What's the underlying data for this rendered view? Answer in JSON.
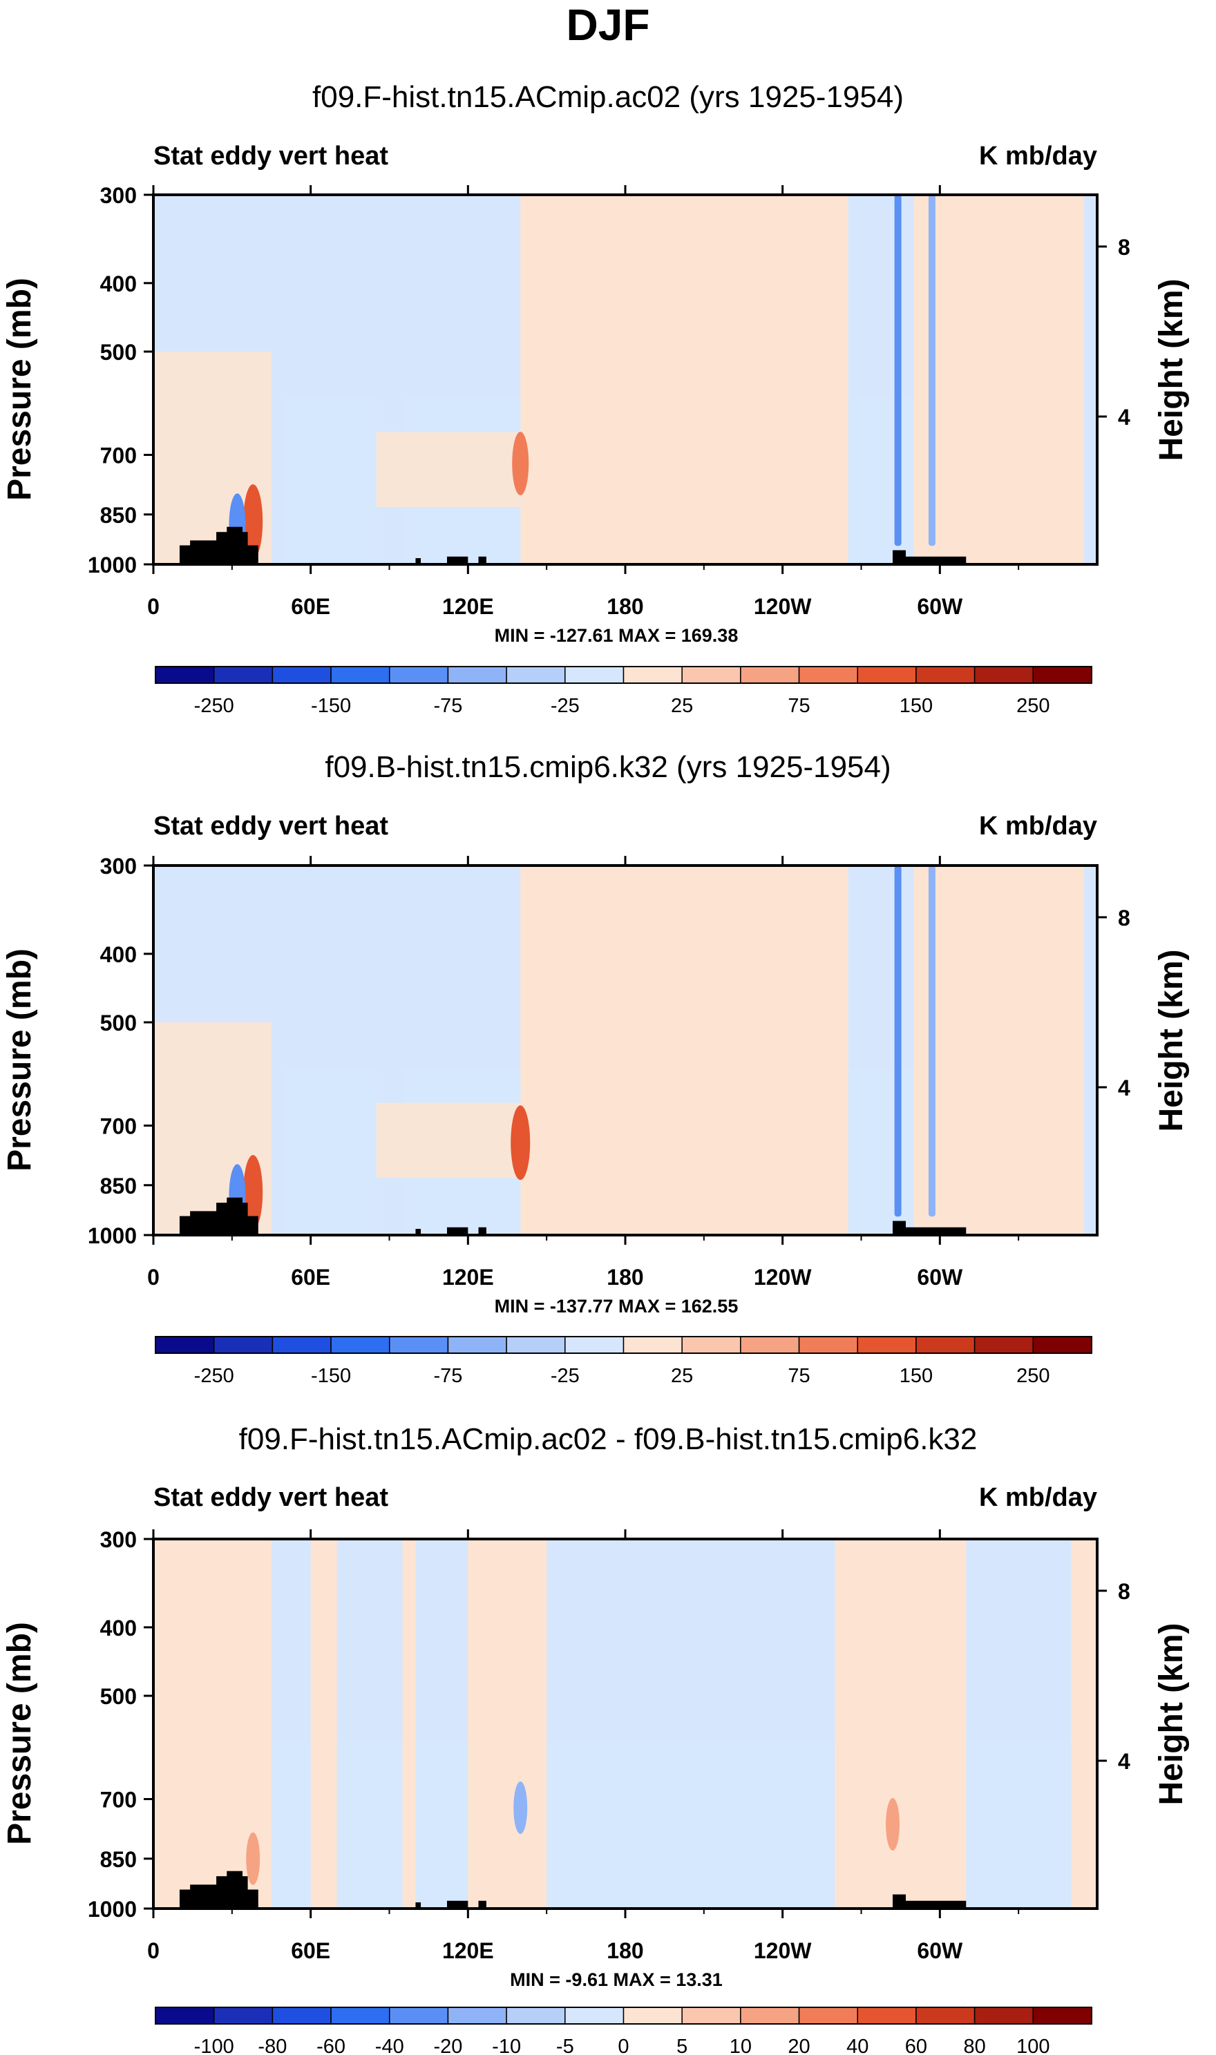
{
  "figure": {
    "title": "DJF"
  },
  "colors": {
    "levels_full": [
      "#0a0a8c",
      "#1a2fb8",
      "#1f4fe0",
      "#2e6ef0",
      "#5a8ff5",
      "#8fb3f7",
      "#b5cff9",
      "#d6e7fd",
      "#fde4d2",
      "#fac7ae",
      "#f6a383",
      "#f07d58",
      "#e5552f",
      "#cc3a1d",
      "#a81e10",
      "#7f0000"
    ],
    "topo": "#000000",
    "frame": "#000000"
  },
  "chart_data": [
    {
      "type": "heatmap",
      "title": "f09.F-hist.tn15.ACmip.ac02 (yrs 1925-1954)",
      "left_label": "Stat eddy vert heat",
      "right_label": "K mb/day",
      "ylabel": "Pressure (mb)",
      "ylabel_right": "Height (km)",
      "x_ticks": [
        "0",
        "60E",
        "120E",
        "180",
        "120W",
        "60W"
      ],
      "x_tick_values": [
        0,
        60,
        120,
        180,
        240,
        300
      ],
      "xlim": [
        0,
        360
      ],
      "y_ticks": [
        "300",
        "400",
        "500",
        "700",
        "850",
        "1000"
      ],
      "y_tick_values": [
        300,
        400,
        500,
        700,
        850,
        1000
      ],
      "ylim": [
        1000,
        300
      ],
      "y_right_ticks": [
        "8",
        "4"
      ],
      "y_right_values": [
        8,
        4
      ],
      "stats": "MIN = -127.61   MAX = 169.38",
      "colorbar_labels": [
        "-250",
        "-150",
        "-75",
        "-25",
        "25",
        "75",
        "150",
        "250"
      ],
      "contour_levels": [
        -300,
        -250,
        -200,
        -150,
        -100,
        -75,
        -50,
        -25,
        0,
        25,
        50,
        75,
        100,
        150,
        200,
        250,
        300
      ],
      "blue_bands": [
        [
          0,
          45
        ],
        [
          50,
          85
        ],
        [
          95,
          140
        ],
        [
          265,
          290
        ]
      ],
      "red_bands": [
        [
          140,
          265
        ],
        [
          290,
          355
        ]
      ],
      "features": [
        {
          "lon": 38,
          "p": 870,
          "sign": 1,
          "mag": 3
        },
        {
          "lon": 32,
          "p": 880,
          "sign": -1,
          "mag": 2
        },
        {
          "lon": 140,
          "p": 720,
          "sign": 1,
          "mag": 2
        },
        {
          "lon": 284,
          "p": 600,
          "sign": -1,
          "mag": 2
        },
        {
          "lon": 297,
          "p": 600,
          "sign": -1,
          "mag": 1
        }
      ]
    },
    {
      "type": "heatmap",
      "title": "f09.B-hist.tn15.cmip6.k32 (yrs 1925-1954)",
      "left_label": "Stat eddy vert heat",
      "right_label": "K mb/day",
      "ylabel": "Pressure (mb)",
      "ylabel_right": "Height (km)",
      "x_ticks": [
        "0",
        "60E",
        "120E",
        "180",
        "120W",
        "60W"
      ],
      "x_tick_values": [
        0,
        60,
        120,
        180,
        240,
        300
      ],
      "xlim": [
        0,
        360
      ],
      "y_ticks": [
        "300",
        "400",
        "500",
        "700",
        "850",
        "1000"
      ],
      "y_tick_values": [
        300,
        400,
        500,
        700,
        850,
        1000
      ],
      "ylim": [
        1000,
        300
      ],
      "y_right_ticks": [
        "8",
        "4"
      ],
      "y_right_values": [
        8,
        4
      ],
      "stats": "MIN = -137.77   MAX = 162.55",
      "colorbar_labels": [
        "-250",
        "-150",
        "-75",
        "-25",
        "25",
        "75",
        "150",
        "250"
      ],
      "contour_levels": [
        -300,
        -250,
        -200,
        -150,
        -100,
        -75,
        -50,
        -25,
        0,
        25,
        50,
        75,
        100,
        150,
        200,
        250,
        300
      ],
      "blue_bands": [
        [
          0,
          45
        ],
        [
          50,
          85
        ],
        [
          95,
          140
        ],
        [
          265,
          290
        ]
      ],
      "red_bands": [
        [
          140,
          265
        ],
        [
          290,
          355
        ]
      ],
      "features": [
        {
          "lon": 38,
          "p": 870,
          "sign": 1,
          "mag": 3
        },
        {
          "lon": 32,
          "p": 880,
          "sign": -1,
          "mag": 2
        },
        {
          "lon": 140,
          "p": 740,
          "sign": 1,
          "mag": 3
        },
        {
          "lon": 284,
          "p": 600,
          "sign": -1,
          "mag": 2
        },
        {
          "lon": 297,
          "p": 600,
          "sign": -1,
          "mag": 1
        }
      ]
    },
    {
      "type": "heatmap",
      "title": "f09.F-hist.tn15.ACmip.ac02 - f09.B-hist.tn15.cmip6.k32",
      "left_label": "Stat eddy vert heat",
      "right_label": "K mb/day",
      "ylabel": "Pressure (mb)",
      "ylabel_right": "Height (km)",
      "x_ticks": [
        "0",
        "60E",
        "120E",
        "180",
        "120W",
        "60W"
      ],
      "x_tick_values": [
        0,
        60,
        120,
        180,
        240,
        300
      ],
      "xlim": [
        0,
        360
      ],
      "y_ticks": [
        "300",
        "400",
        "500",
        "700",
        "850",
        "1000"
      ],
      "y_tick_values": [
        300,
        400,
        500,
        700,
        850,
        1000
      ],
      "ylim": [
        1000,
        300
      ],
      "y_right_ticks": [
        "8",
        "4"
      ],
      "y_right_values": [
        8,
        4
      ],
      "stats": "MIN =  -9.61   MAX =  13.31",
      "colorbar_labels": [
        "-100",
        "-80",
        "-60",
        "-40",
        "-20",
        "-10",
        "-5",
        "0",
        "5",
        "10",
        "20",
        "40",
        "60",
        "80",
        "100"
      ],
      "contour_levels": [
        -100,
        -80,
        -60,
        -40,
        -20,
        -10,
        -5,
        0,
        5,
        10,
        20,
        40,
        60,
        80,
        100
      ],
      "blue_bands": [
        [
          45,
          60
        ],
        [
          70,
          95
        ],
        [
          100,
          120
        ],
        [
          150,
          260
        ],
        [
          310,
          350
        ]
      ],
      "red_bands": [
        [
          0,
          45
        ],
        [
          60,
          70
        ],
        [
          95,
          100
        ],
        [
          120,
          150
        ],
        [
          260,
          310
        ],
        [
          350,
          360
        ]
      ],
      "features": [
        {
          "lon": 38,
          "p": 850,
          "sign": 1,
          "mag": 1
        },
        {
          "lon": 140,
          "p": 720,
          "sign": -1,
          "mag": 1
        },
        {
          "lon": 282,
          "p": 760,
          "sign": 1,
          "mag": 1
        }
      ]
    }
  ],
  "topography": [
    {
      "from": 10,
      "to": 40,
      "top": 940
    },
    {
      "from": 14,
      "to": 30,
      "top": 925
    },
    {
      "from": 24,
      "to": 36,
      "top": 900
    },
    {
      "from": 28,
      "to": 34,
      "top": 885
    },
    {
      "from": 100,
      "to": 102,
      "top": 980
    },
    {
      "from": 112,
      "to": 120,
      "top": 975
    },
    {
      "from": 124,
      "to": 127,
      "top": 975
    },
    {
      "from": 282,
      "to": 310,
      "top": 975
    },
    {
      "from": 282,
      "to": 287,
      "top": 955
    }
  ]
}
